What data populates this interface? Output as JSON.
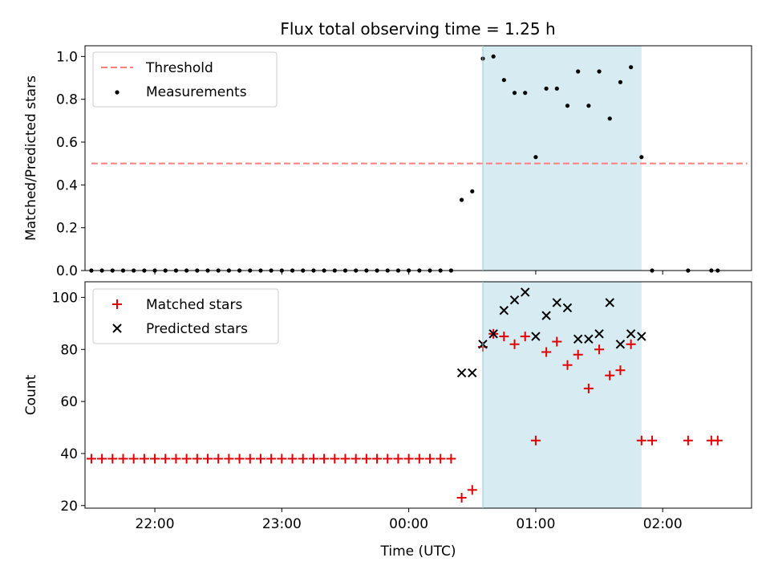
{
  "title": "Flux total observing time = 1.25 h",
  "colors": {
    "threshold": "#ff7f7f",
    "measurement": "#000000",
    "matched": "#e00000",
    "predicted": "#000000",
    "shade": "#add8e6"
  },
  "chart_data": [
    {
      "type": "scatter",
      "ylabel": "Matched/Predicted stars",
      "xlabel": "",
      "ylim": [
        0.0,
        1.05
      ],
      "xlim": [
        "21:27",
        "02:42"
      ],
      "yticks": [
        "0.0",
        "0.2",
        "0.4",
        "0.6",
        "0.8",
        "1.0"
      ],
      "legend_position": "top-left",
      "shaded_interval": [
        "00:35",
        "01:50"
      ],
      "threshold": {
        "name": "Threshold",
        "value": 0.5,
        "x_range": [
          "21:30",
          "02:40"
        ],
        "style": "dashed"
      },
      "series": [
        {
          "name": "Measurements",
          "points": [
            [
              "21:30",
              0
            ],
            [
              "21:35",
              0
            ],
            [
              "21:40",
              0
            ],
            [
              "21:45",
              0
            ],
            [
              "21:50",
              0
            ],
            [
              "21:55",
              0
            ],
            [
              "22:00",
              0
            ],
            [
              "22:05",
              0
            ],
            [
              "22:10",
              0
            ],
            [
              "22:15",
              0
            ],
            [
              "22:20",
              0
            ],
            [
              "22:25",
              0
            ],
            [
              "22:30",
              0
            ],
            [
              "22:35",
              0
            ],
            [
              "22:40",
              0
            ],
            [
              "22:45",
              0
            ],
            [
              "22:50",
              0
            ],
            [
              "22:55",
              0
            ],
            [
              "23:00",
              0
            ],
            [
              "23:05",
              0
            ],
            [
              "23:10",
              0
            ],
            [
              "23:15",
              0
            ],
            [
              "23:20",
              0
            ],
            [
              "23:25",
              0
            ],
            [
              "23:30",
              0
            ],
            [
              "23:35",
              0
            ],
            [
              "23:40",
              0
            ],
            [
              "23:45",
              0
            ],
            [
              "23:50",
              0
            ],
            [
              "23:55",
              0
            ],
            [
              "00:00",
              0
            ],
            [
              "00:05",
              0
            ],
            [
              "00:10",
              0
            ],
            [
              "00:15",
              0
            ],
            [
              "00:20",
              0
            ],
            [
              "00:25",
              0.33
            ],
            [
              "00:30",
              0.37
            ],
            [
              "00:35",
              0.99
            ],
            [
              "00:40",
              1.0
            ],
            [
              "00:45",
              0.89
            ],
            [
              "00:50",
              0.83
            ],
            [
              "00:55",
              0.83
            ],
            [
              "01:00",
              0.53
            ],
            [
              "01:05",
              0.85
            ],
            [
              "01:10",
              0.85
            ],
            [
              "01:15",
              0.77
            ],
            [
              "01:20",
              0.93
            ],
            [
              "01:25",
              0.77
            ],
            [
              "01:30",
              0.93
            ],
            [
              "01:35",
              0.71
            ],
            [
              "01:40",
              0.88
            ],
            [
              "01:45",
              0.95
            ],
            [
              "01:50",
              0.53
            ],
            [
              "01:55",
              0
            ],
            [
              "02:12",
              0
            ],
            [
              "02:23",
              0
            ],
            [
              "02:26",
              0
            ]
          ]
        }
      ]
    },
    {
      "type": "scatter",
      "ylabel": "Count",
      "xlabel": "Time (UTC)",
      "ylim": [
        19,
        106
      ],
      "xlim": [
        "21:27",
        "02:42"
      ],
      "yticks": [
        "20",
        "40",
        "60",
        "80",
        "100"
      ],
      "xticks": [
        "22:00",
        "23:00",
        "00:00",
        "01:00",
        "02:00"
      ],
      "legend_position": "top-left",
      "shaded_interval": [
        "00:35",
        "01:50"
      ],
      "series": [
        {
          "name": "Matched stars",
          "marker": "plus",
          "points": [
            [
              "21:30",
              38
            ],
            [
              "21:35",
              38
            ],
            [
              "21:40",
              38
            ],
            [
              "21:45",
              38
            ],
            [
              "21:50",
              38
            ],
            [
              "21:55",
              38
            ],
            [
              "22:00",
              38
            ],
            [
              "22:05",
              38
            ],
            [
              "22:10",
              38
            ],
            [
              "22:15",
              38
            ],
            [
              "22:20",
              38
            ],
            [
              "22:25",
              38
            ],
            [
              "22:30",
              38
            ],
            [
              "22:35",
              38
            ],
            [
              "22:40",
              38
            ],
            [
              "22:45",
              38
            ],
            [
              "22:50",
              38
            ],
            [
              "22:55",
              38
            ],
            [
              "23:00",
              38
            ],
            [
              "23:05",
              38
            ],
            [
              "23:10",
              38
            ],
            [
              "23:15",
              38
            ],
            [
              "23:20",
              38
            ],
            [
              "23:25",
              38
            ],
            [
              "23:30",
              38
            ],
            [
              "23:35",
              38
            ],
            [
              "23:40",
              38
            ],
            [
              "23:45",
              38
            ],
            [
              "23:50",
              38
            ],
            [
              "23:55",
              38
            ],
            [
              "00:00",
              38
            ],
            [
              "00:05",
              38
            ],
            [
              "00:10",
              38
            ],
            [
              "00:15",
              38
            ],
            [
              "00:20",
              38
            ],
            [
              "00:25",
              23
            ],
            [
              "00:30",
              26
            ],
            [
              "00:35",
              81
            ],
            [
              "00:40",
              86
            ],
            [
              "00:45",
              85
            ],
            [
              "00:50",
              82
            ],
            [
              "00:55",
              85
            ],
            [
              "01:00",
              45
            ],
            [
              "01:05",
              79
            ],
            [
              "01:10",
              83
            ],
            [
              "01:15",
              74
            ],
            [
              "01:20",
              78
            ],
            [
              "01:25",
              65
            ],
            [
              "01:30",
              80
            ],
            [
              "01:35",
              70
            ],
            [
              "01:40",
              72
            ],
            [
              "01:45",
              82
            ],
            [
              "01:50",
              45
            ],
            [
              "01:55",
              45
            ],
            [
              "02:12",
              45
            ],
            [
              "02:23",
              45
            ],
            [
              "02:26",
              45
            ]
          ]
        },
        {
          "name": "Predicted stars",
          "marker": "x",
          "points": [
            [
              "00:25",
              71
            ],
            [
              "00:30",
              71
            ],
            [
              "00:35",
              82
            ],
            [
              "00:40",
              86
            ],
            [
              "00:45",
              95
            ],
            [
              "00:50",
              99
            ],
            [
              "00:55",
              102
            ],
            [
              "01:00",
              85
            ],
            [
              "01:05",
              93
            ],
            [
              "01:10",
              98
            ],
            [
              "01:15",
              96
            ],
            [
              "01:20",
              84
            ],
            [
              "01:25",
              84
            ],
            [
              "01:30",
              86
            ],
            [
              "01:35",
              98
            ],
            [
              "01:40",
              82
            ],
            [
              "01:45",
              86
            ],
            [
              "01:50",
              85
            ]
          ]
        }
      ]
    }
  ]
}
